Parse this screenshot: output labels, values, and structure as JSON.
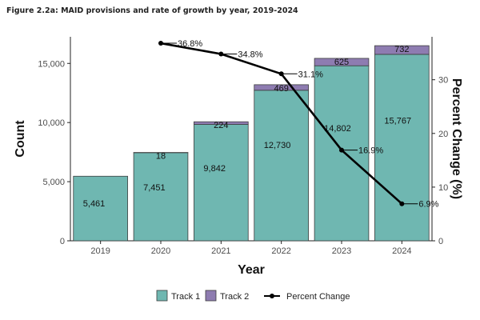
{
  "figure_title": "Figure 2.2a: MAID provisions and rate of growth by year, 2019-2024",
  "colors": {
    "track1": "#6fb7b1",
    "track2": "#8e7cb1",
    "line": "#000000",
    "bar_stroke": "#3d3d3d"
  },
  "chart_data": {
    "type": "bar",
    "stacked": true,
    "categories": [
      "2019",
      "2020",
      "2021",
      "2022",
      "2023",
      "2024"
    ],
    "series": [
      {
        "name": "Track 1",
        "values": [
          5461,
          7451,
          9842,
          12730,
          14802,
          15767
        ],
        "labels": [
          "5,461",
          "7,451",
          "9,842",
          "12,730",
          "14,802",
          "15,767"
        ]
      },
      {
        "name": "Track 2",
        "values": [
          0,
          18,
          224,
          469,
          625,
          732
        ],
        "labels": [
          "",
          "18",
          "224",
          "469",
          "625",
          "732"
        ]
      }
    ],
    "line_series": {
      "name": "Percent Change",
      "x": [
        "2020",
        "2021",
        "2022",
        "2023",
        "2024"
      ],
      "values": [
        36.8,
        34.8,
        31.1,
        16.9,
        6.9
      ],
      "labels": [
        "36.8%",
        "34.8%",
        "31.1%",
        "16.9%",
        "6.9%"
      ]
    },
    "xlabel": "Year",
    "ylabel": "Count",
    "y2label": "Percent Change (%)",
    "ylim": [
      0,
      17250
    ],
    "y2lim": [
      0,
      38
    ],
    "yticks": [
      0,
      5000,
      10000,
      15000
    ],
    "ytick_labels": [
      "0",
      "5,000",
      "10,000",
      "15,000"
    ],
    "y2ticks": [
      0,
      10,
      20,
      30
    ],
    "y2tick_labels": [
      "0",
      "10",
      "20",
      "30"
    ],
    "grid": false,
    "legend_position": "bottom"
  }
}
